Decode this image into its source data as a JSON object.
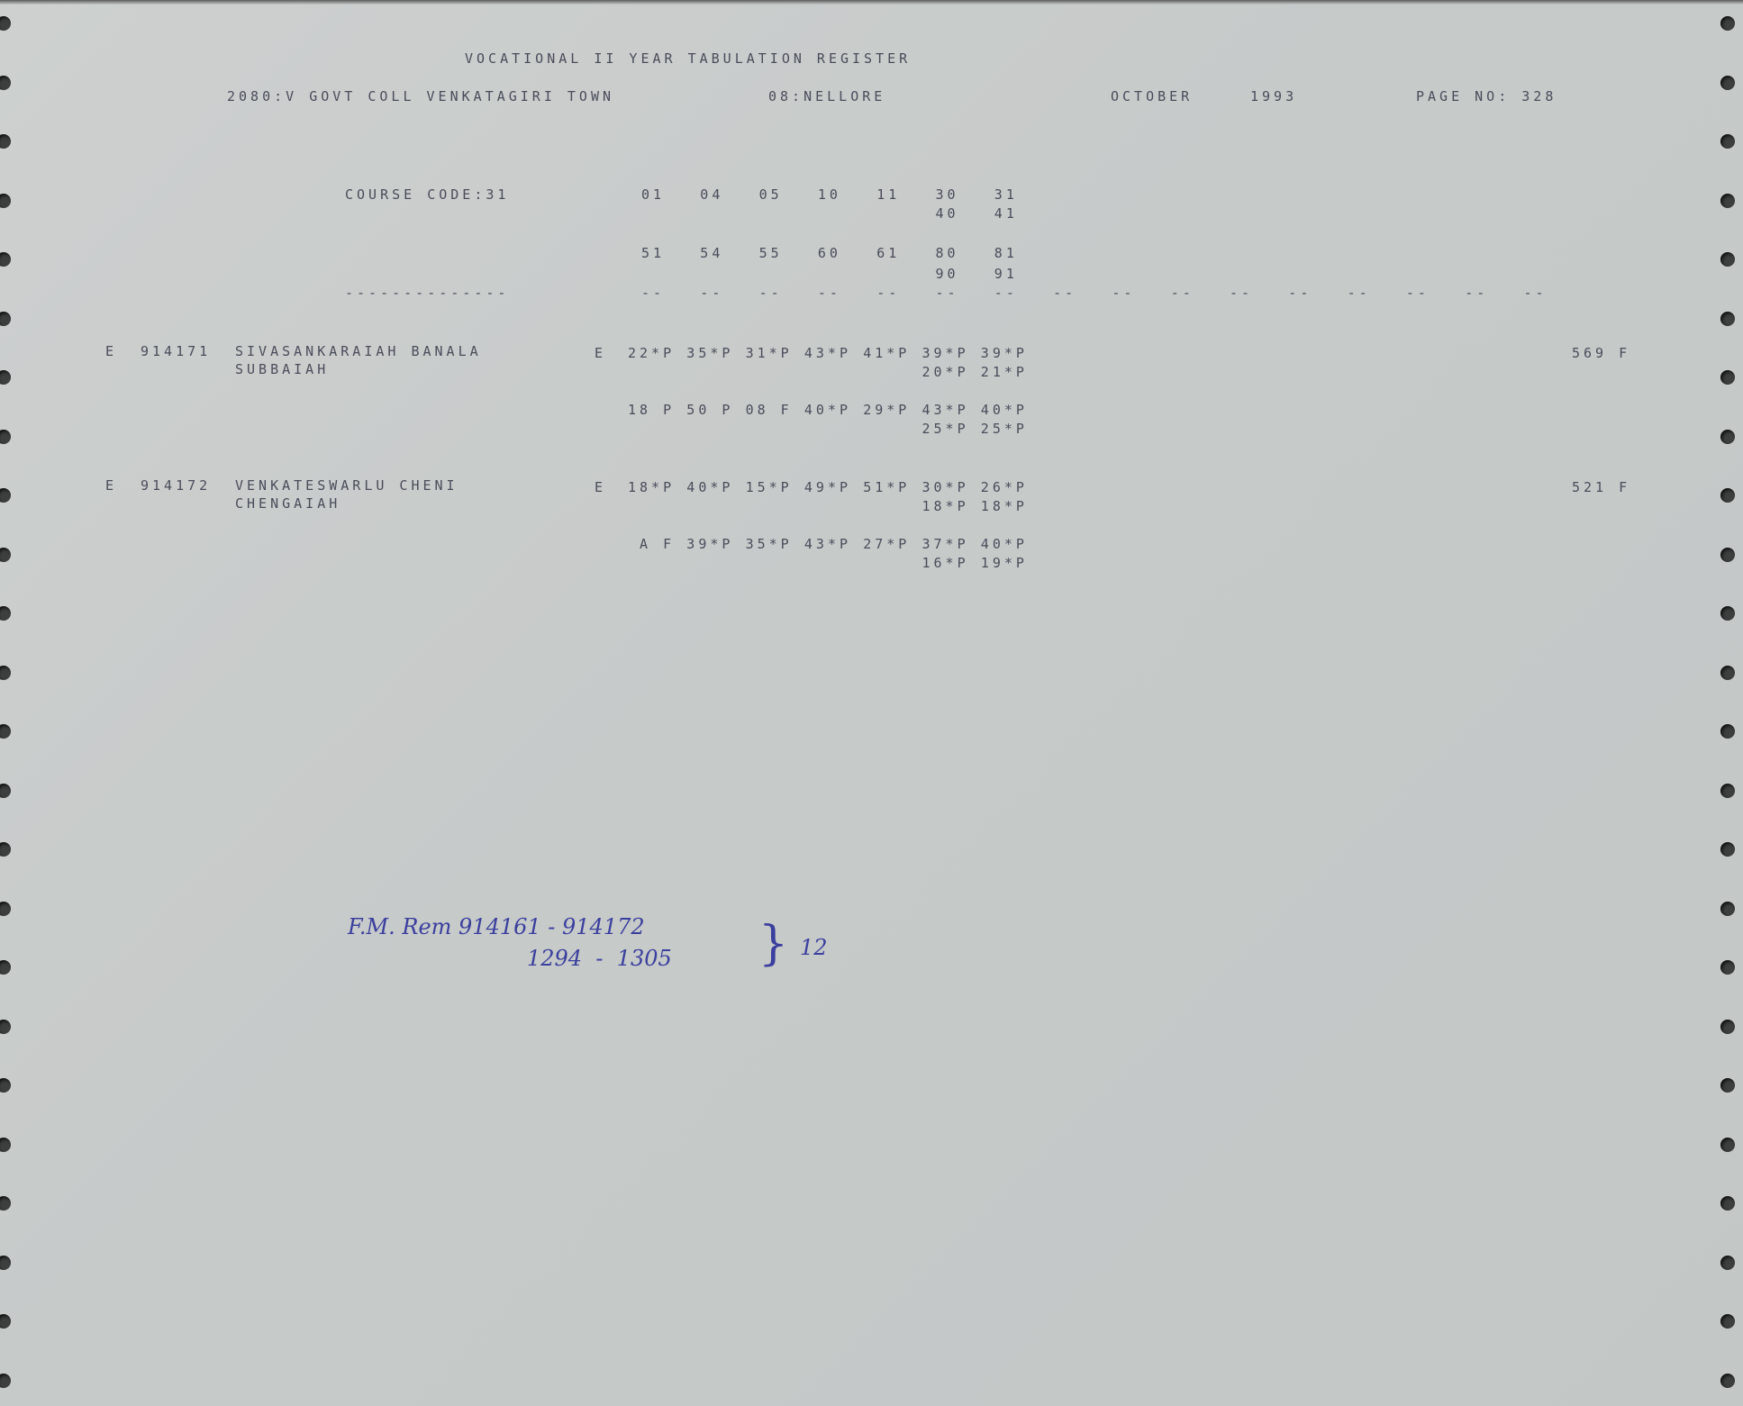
{
  "header": {
    "title": "VOCATIONAL II YEAR TABULATION REGISTER",
    "college": "2080:V GOVT COLL VENKATAGIRI TOWN",
    "district": "08:NELLORE",
    "month": "OCTOBER",
    "year": "1993",
    "page": "PAGE NO: 328"
  },
  "course": {
    "label": "COURSE CODE:31",
    "row1": [
      "01",
      "04",
      "05",
      "10",
      "11",
      "30",
      "31"
    ],
    "row1_sub": [
      "40",
      "41"
    ],
    "row2": [
      "51",
      "54",
      "55",
      "60",
      "61",
      "80",
      "81"
    ],
    "row2_sub": [
      "90",
      "91"
    ],
    "underline": "--------------",
    "dash": "--"
  },
  "students": [
    {
      "category": "E",
      "roll": "914171",
      "name": "SIVASANKARAIAH BANALA",
      "father": "SUBBAIAH",
      "medium": "E",
      "marks1": [
        "22*P",
        "35*P",
        "31*P",
        "43*P",
        "41*P",
        "39*P",
        "39*P"
      ],
      "marks1_sub": [
        "20*P",
        "21*P"
      ],
      "marks2": [
        "18 P",
        "50 P",
        "08 F",
        "40*P",
        "29*P",
        "43*P",
        "40*P"
      ],
      "marks2_sub": [
        "25*P",
        "25*P"
      ],
      "total": "569 F"
    },
    {
      "category": "E",
      "roll": "914172",
      "name": "VENKATESWARLU CHENI",
      "father": "CHENGAIAH",
      "medium": "E",
      "marks1": [
        "18*P",
        "40*P",
        "15*P",
        "49*P",
        "51*P",
        "30*P",
        "26*P"
      ],
      "marks1_sub": [
        "18*P",
        "18*P"
      ],
      "marks2": [
        " A F",
        "39*P",
        "35*P",
        "43*P",
        "27*P",
        "37*P",
        "40*P"
      ],
      "marks2_sub": [
        "16*P",
        "19*P"
      ],
      "total": "521 F"
    }
  ],
  "annotation": {
    "line1": "F.M. Rem 914161 - 914172",
    "line2": "1294  -  1305",
    "brace": "}",
    "count": "12",
    "ink_color": "#3b3f9e"
  }
}
